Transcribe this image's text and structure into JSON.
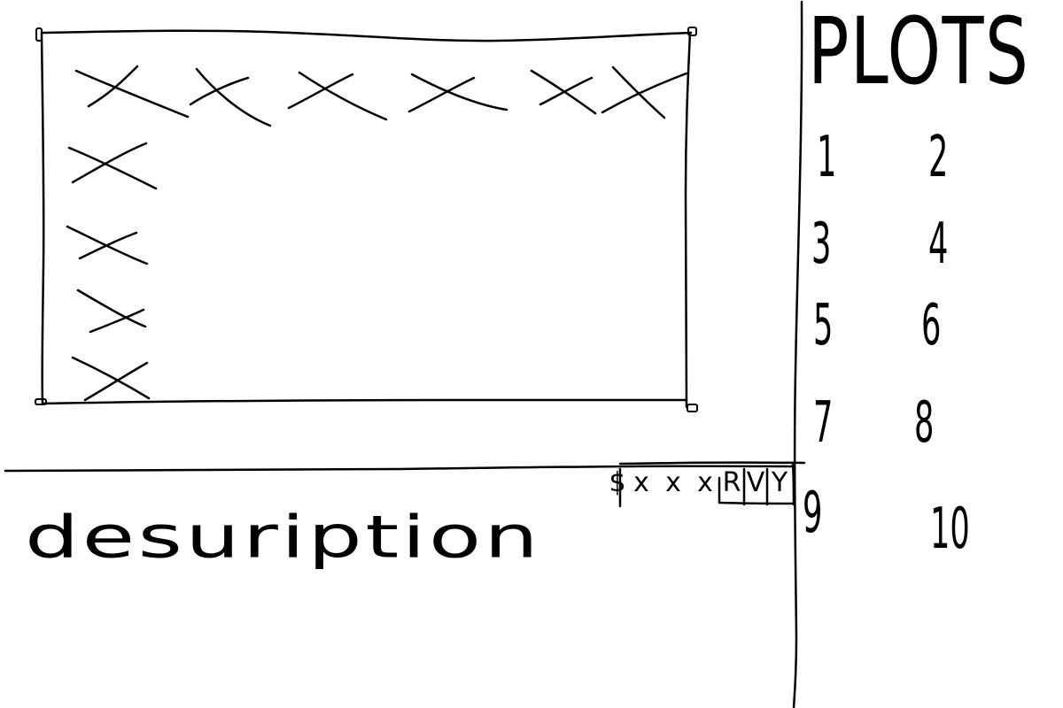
{
  "sidebar": {
    "title": "PLOTS",
    "items": [
      {
        "label": "1"
      },
      {
        "label": "2"
      },
      {
        "label": "3"
      },
      {
        "label": "4"
      },
      {
        "label": "5"
      },
      {
        "label": "6"
      },
      {
        "label": "7"
      },
      {
        "label": "8"
      },
      {
        "label": "9"
      },
      {
        "label": "10"
      }
    ]
  },
  "description": {
    "text": "desuription"
  },
  "toolbar": {
    "items": [
      {
        "label": "$",
        "icon": "dollar-icon"
      },
      {
        "label": "x",
        "icon": "cross-icon"
      },
      {
        "label": "x",
        "icon": "cross-icon"
      },
      {
        "label": "x",
        "icon": "cross-icon"
      },
      {
        "label": "R",
        "icon": "r-icon"
      },
      {
        "label": "V",
        "icon": "v-icon"
      },
      {
        "label": "Y",
        "icon": "y-icon"
      }
    ]
  },
  "plot_area": {
    "marker_icon": "cross-icon",
    "top_row_markers": 6,
    "left_column_markers": 4
  }
}
